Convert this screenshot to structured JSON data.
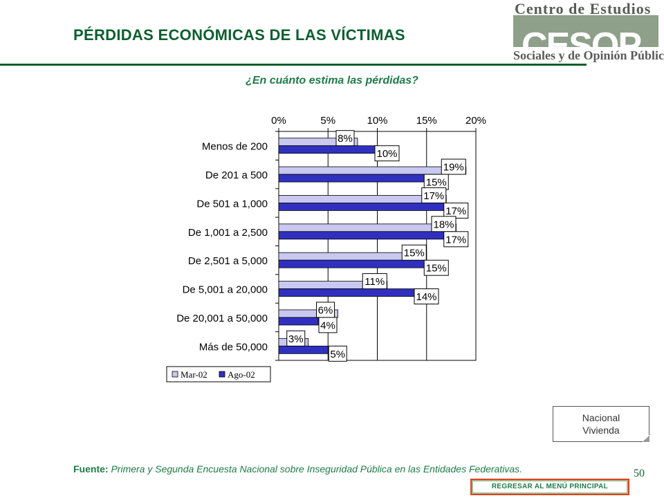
{
  "header": {
    "title": "PÉRDIDAS ECONÓMICAS DE LAS VÍCTIMAS",
    "logo_top": "Centro de Estudios",
    "logo_word": "CESOP",
    "logo_bottom": "Sociales y de Opinión Pública"
  },
  "subtitle": "¿En cuánto estima las pérdidas?",
  "chart_data": {
    "type": "bar",
    "orientation": "horizontal",
    "categories": [
      "Menos de 200",
      "De 201 a 500",
      "De 501 a 1,000",
      "De 1,001 a 2,500",
      "De 2,501 a 5,000",
      "De 5,001 a 20,000",
      "De 20,001 a 50,000",
      "Más de 50,000"
    ],
    "series": [
      {
        "name": "Mar-02",
        "values": [
          8,
          19,
          17,
          18,
          15,
          11,
          6,
          3
        ],
        "labels": [
          "8%",
          "19%",
          "17%",
          "18%",
          "15%",
          "11%",
          "6%",
          "3%"
        ],
        "color": "#c8c8f0"
      },
      {
        "name": "Ago-02",
        "values": [
          10,
          15,
          17,
          17,
          15,
          14,
          4,
          5
        ],
        "labels": [
          "10%",
          "15%",
          "17%",
          "17%",
          "15%",
          "14%",
          "4%",
          "5%"
        ],
        "color": "#3030c0"
      }
    ],
    "xlim": [
      0,
      20
    ],
    "xticks": [
      "0%",
      "5%",
      "10%",
      "15%",
      "20%"
    ],
    "grid": true,
    "legend": "bottom-left"
  },
  "note": {
    "line1": "Nacional",
    "line2": "Vivienda"
  },
  "source": {
    "label": "Fuente:",
    "text": " Primera y Segunda Encuesta Nacional sobre Inseguridad Pública en las Entidades Federativas."
  },
  "page_number": "50",
  "nav": {
    "back_label": "REGRESAR AL MENÚ PRINCIPAL"
  }
}
